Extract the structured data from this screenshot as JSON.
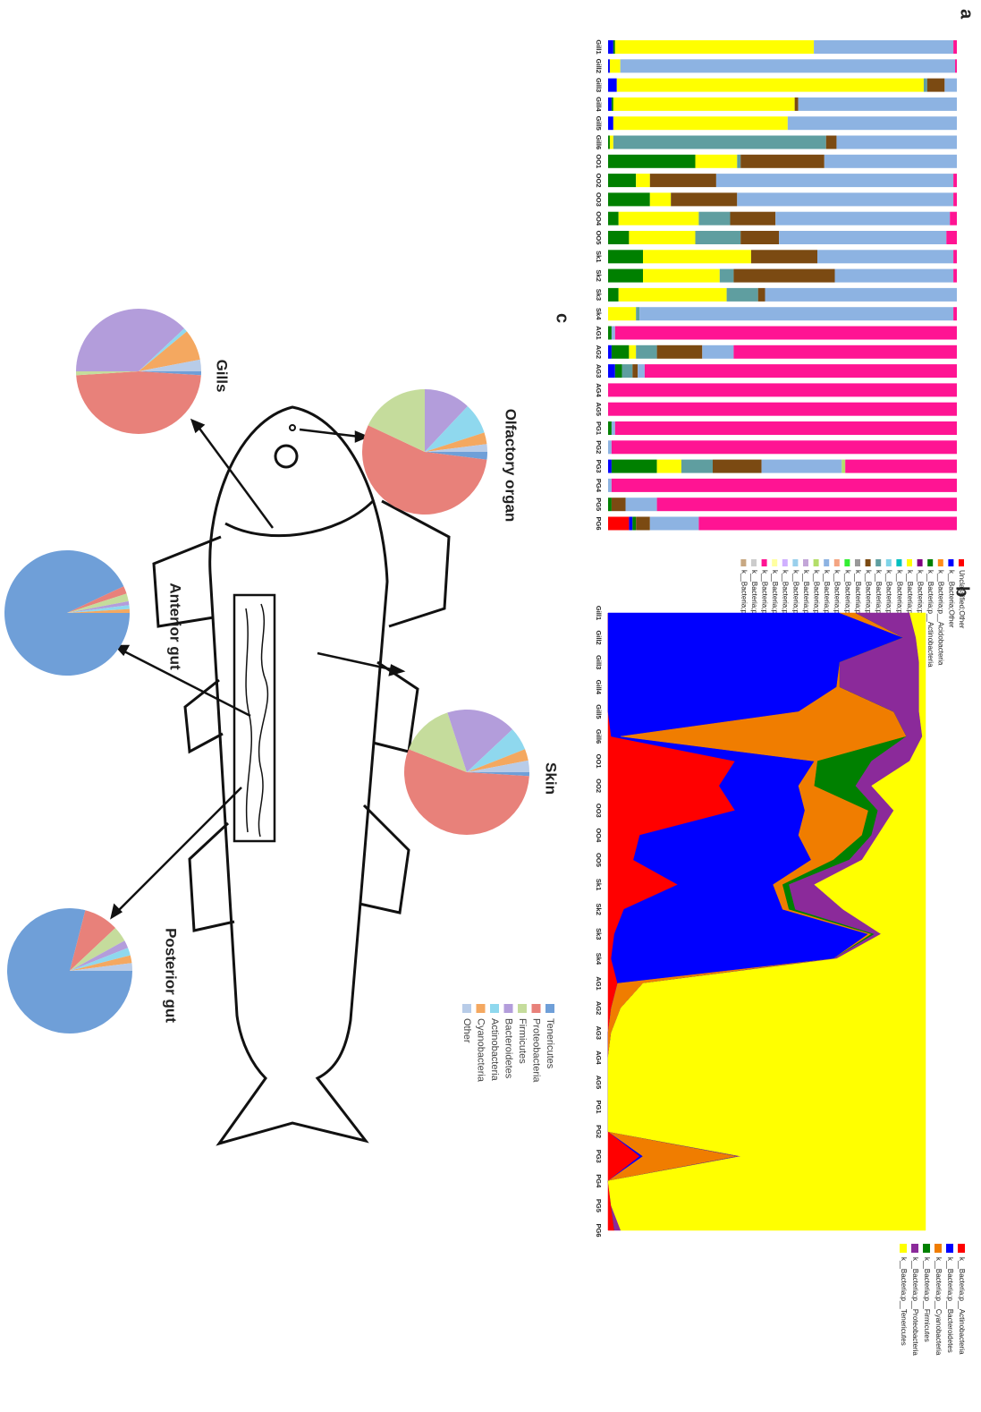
{
  "chart_data": [
    {
      "type": "bar",
      "label": "a",
      "stacked": true,
      "ylim": [
        0,
        100
      ],
      "categories": [
        "Gill1",
        "Gill2",
        "Gill3",
        "Gill4",
        "Gill5",
        "Gill6",
        "OO1",
        "OO2",
        "OO3",
        "OO4",
        "OO5",
        "Sk1",
        "Sk2",
        "Sk3",
        "Sk4",
        "AG1",
        "AG2",
        "AG3",
        "AG4",
        "AG5",
        "PG1",
        "PG2",
        "PG3",
        "PG4",
        "PG5",
        "PG6"
      ],
      "series": [
        {
          "name": "Unclassified;Other",
          "color": "#ff0000",
          "values": [
            0,
            0,
            0,
            0,
            0,
            0,
            0,
            0,
            0,
            0,
            0,
            0,
            0,
            0,
            0,
            0,
            0,
            0,
            0,
            0,
            0,
            0,
            0,
            0,
            0,
            6
          ]
        },
        {
          "name": "k__Bacteria;Other",
          "color": "#0000ff",
          "values": [
            1.5,
            0.5,
            2.5,
            1,
            1.5,
            0,
            0,
            0,
            0,
            0,
            0,
            0,
            0,
            0,
            0,
            0,
            1,
            2,
            0,
            0,
            0,
            0,
            1,
            0,
            0,
            1
          ]
        },
        {
          "name": "k__Bacteria;p__Acidobacteria",
          "color": "#ff8c1a",
          "values": [
            0,
            0,
            0,
            0,
            0,
            0,
            0,
            0,
            0,
            0,
            0,
            0,
            0,
            0,
            0,
            0,
            0,
            0,
            0,
            0,
            0,
            0,
            0,
            0,
            0,
            0
          ]
        },
        {
          "name": "k__Bacteria;p__Actinobacteria",
          "color": "#008000",
          "values": [
            0.5,
            0,
            0,
            0.5,
            0,
            0.5,
            25,
            8,
            12,
            3,
            6,
            10,
            10,
            3,
            0,
            1,
            5,
            2,
            0,
            0,
            1,
            0,
            13,
            0,
            1,
            1
          ]
        },
        {
          "name": "k__Bacteria;p__Armatimonadetes",
          "color": "#800080",
          "values": [
            0,
            0,
            0,
            0,
            0,
            0,
            0,
            0,
            0,
            0,
            0,
            0,
            0,
            0,
            0,
            0,
            0,
            0,
            0,
            0,
            0,
            0,
            0,
            0,
            0,
            0
          ]
        },
        {
          "name": "k__Bacteria;p__Bacteroidetes",
          "color": "#ffff00",
          "values": [
            57,
            3,
            88,
            52,
            50,
            1,
            12,
            4,
            6,
            23,
            19,
            31,
            22,
            31,
            8,
            0,
            2,
            0,
            0,
            0,
            0,
            0,
            7,
            0,
            0,
            0
          ]
        },
        {
          "name": "k__Bacteria;p__Chlorobi",
          "color": "#00bfbf",
          "values": [
            0,
            0,
            0,
            0,
            0,
            0,
            0,
            0,
            0,
            0,
            0,
            0,
            0,
            0,
            0,
            0,
            0,
            0,
            0,
            0,
            0,
            0,
            0,
            0,
            0,
            0
          ]
        },
        {
          "name": "k__Bacteria;p__Chloroflexi",
          "color": "#7fd4e8",
          "values": [
            0,
            0,
            0,
            0,
            0,
            0,
            0,
            0,
            0,
            0,
            0,
            0,
            0,
            0,
            0,
            0,
            0,
            0,
            0,
            0,
            0,
            0,
            0,
            0,
            0,
            0
          ]
        },
        {
          "name": "k__Bacteria;p__Cyanobacteria",
          "color": "#5f9ea0",
          "values": [
            0,
            0,
            1,
            0,
            0,
            61,
            1,
            0,
            0,
            9,
            13,
            0,
            4,
            9,
            1,
            0,
            6,
            3,
            0,
            0,
            0,
            0,
            9,
            0,
            0,
            0
          ]
        },
        {
          "name": "k__Bacteria;p__Firmicutes",
          "color": "#7b4a12",
          "values": [
            0,
            0,
            5,
            1,
            0,
            3,
            24,
            19,
            19,
            13,
            11,
            19,
            29,
            2,
            0,
            0,
            13,
            1.5,
            0,
            0,
            0,
            0,
            14,
            0,
            4,
            4
          ]
        },
        {
          "name": "k__Bacteria;p__Fusobacteria",
          "color": "#999999",
          "values": [
            0,
            0,
            0,
            0,
            0,
            0,
            0,
            0,
            0,
            0,
            0,
            0,
            0,
            0,
            0,
            0,
            0,
            0,
            0,
            0,
            0,
            0,
            0,
            0,
            0,
            0
          ]
        },
        {
          "name": "k__Bacteria;p__Gemmatimonadetes",
          "color": "#33ee33",
          "values": [
            0,
            0,
            0,
            0,
            0,
            0,
            0,
            0,
            0,
            0,
            0,
            0,
            0,
            0,
            0,
            0,
            0,
            0,
            0,
            0,
            0,
            0,
            0,
            0,
            0,
            0
          ]
        },
        {
          "name": "k__Bacteria;p__Planctomycetes",
          "color": "#f4a582",
          "values": [
            0,
            0,
            0,
            0,
            0,
            0,
            0,
            0,
            0,
            0,
            0,
            0,
            0,
            0,
            0,
            0,
            0,
            0,
            0,
            0,
            0,
            0,
            0,
            0,
            0,
            0
          ]
        },
        {
          "name": "k__Bacteria;p__Proteobacteria",
          "color": "#8db3e2",
          "values": [
            40,
            96,
            3.5,
            45.5,
            48.5,
            34.5,
            38,
            68,
            62,
            50,
            48,
            39,
            34,
            55,
            90,
            1,
            9,
            2,
            0,
            0,
            1,
            1,
            23,
            1,
            9,
            14
          ]
        },
        {
          "name": "k__Bacteria;p__SR1",
          "color": "#b3de69",
          "values": [
            0,
            0,
            0,
            0,
            0,
            0,
            0,
            0,
            0,
            0,
            0,
            0,
            0,
            0,
            0,
            0,
            0,
            0,
            0,
            0,
            0,
            0,
            1,
            0,
            0,
            0
          ]
        },
        {
          "name": "k__Bacteria;p__Spirochaetes",
          "color": "#c3a6d8",
          "values": [
            0,
            0,
            0,
            0,
            0,
            0,
            0,
            0,
            0,
            0,
            0,
            0,
            0,
            0,
            0,
            0,
            0,
            0,
            0,
            0,
            0,
            0,
            0,
            0,
            0,
            0
          ]
        },
        {
          "name": "k__Bacteria;p__Synergistetes",
          "color": "#9ad0ec",
          "values": [
            0,
            0,
            0,
            0,
            0,
            0,
            0,
            0,
            0,
            0,
            0,
            0,
            0,
            0,
            0,
            0,
            0,
            0,
            0,
            0,
            0,
            0,
            0,
            0,
            0,
            0
          ]
        },
        {
          "name": "k__Bacteria;p__TM6",
          "color": "#d0b0ff",
          "values": [
            0,
            0,
            0,
            0,
            0,
            0,
            0,
            0,
            0,
            0,
            0,
            0,
            0,
            0,
            0,
            0,
            0,
            0,
            0,
            0,
            0,
            0,
            0,
            0,
            0,
            0
          ]
        },
        {
          "name": "k__Bacteria;p__TM7",
          "color": "#ffffa0",
          "values": [
            0,
            0,
            0,
            0,
            0,
            0,
            0,
            0,
            0,
            0,
            0,
            0,
            0,
            0,
            0,
            0,
            0,
            0,
            0,
            0,
            0,
            0,
            0,
            0,
            0,
            0
          ]
        },
        {
          "name": "k__Bacteria;p__Tenericutes",
          "color": "#ff1493",
          "values": [
            1,
            0.5,
            0,
            0,
            0,
            0,
            0,
            1,
            1,
            2,
            3,
            1,
            1,
            0,
            1,
            98,
            64,
            89.5,
            100,
            100,
            98,
            99,
            32,
            99,
            86,
            74
          ]
        },
        {
          "name": "k__Bacteria;p__Thermi",
          "color": "#cccccc",
          "values": [
            0,
            0,
            0,
            0,
            0,
            0,
            0,
            0,
            0,
            0,
            0,
            0,
            0,
            0,
            0,
            0,
            0,
            0,
            0,
            0,
            0,
            0,
            0,
            0,
            0,
            0
          ]
        },
        {
          "name": "k__Bacteria;p__Verrucomicrobia",
          "color": "#c8a882",
          "values": [
            0,
            0,
            0,
            0,
            0,
            0,
            0,
            0,
            0,
            0,
            0,
            0,
            0,
            0,
            0,
            0,
            0,
            0,
            0,
            0,
            0,
            0,
            0,
            0,
            0,
            0
          ]
        }
      ]
    },
    {
      "type": "area",
      "label": "b",
      "stacked": true,
      "ylim": [
        0,
        100
      ],
      "categories": [
        "Gill1",
        "Gill2",
        "Gill3",
        "Gill4",
        "Gill5",
        "Gill6",
        "OO1",
        "OO2",
        "OO3",
        "OO4",
        "OO5",
        "Sk1",
        "Sk2",
        "Sk3",
        "Sk4",
        "AG1",
        "AG2",
        "AG3",
        "AG4",
        "AG5",
        "PG1",
        "PG2",
        "PG3",
        "PG4",
        "PG5",
        "PG6"
      ],
      "series": [
        {
          "name": "k__Bacteria;p__Actinobacteria",
          "color": "#ff0000",
          "values": [
            0,
            0,
            0,
            0,
            0,
            1,
            40,
            35,
            40,
            10,
            8,
            22,
            5,
            2,
            1,
            3,
            1,
            0,
            0,
            0,
            0,
            0,
            10,
            0,
            1,
            2
          ]
        },
        {
          "name": "k__Bacteria;p__Bacteroidetes",
          "color": "#0000ff",
          "values": [
            73,
            93,
            73,
            72,
            60,
            3,
            25,
            25,
            22,
            50,
            56,
            30,
            50,
            80,
            70,
            0,
            0,
            0,
            0,
            0,
            0,
            0,
            1,
            0,
            0,
            0
          ]
        },
        {
          "name": "k__Bacteria;p__Cyanobacteria",
          "color": "#f07d00",
          "values": [
            5,
            0,
            0,
            1,
            30,
            90,
            1,
            5,
            20,
            20,
            7,
            3,
            2,
            1,
            0,
            8,
            3,
            1,
            0,
            0,
            0,
            0,
            30,
            0,
            0,
            0
          ]
        },
        {
          "name": "k__Bacteria;p__Firmicutes",
          "color": "#008000",
          "values": [
            0,
            0,
            0,
            0,
            0,
            0,
            17,
            13,
            3,
            3,
            5,
            2,
            2,
            1,
            0,
            0,
            0,
            0,
            0,
            0,
            0,
            0,
            0,
            0,
            0,
            0
          ]
        },
        {
          "name": "k__Bacteria;p__Proteobacteria",
          "color": "#8b2a9a",
          "values": [
            17,
            4,
            25,
            25,
            8,
            5,
            12,
            5,
            5,
            2,
            4,
            8,
            15,
            2,
            1,
            0,
            0,
            0,
            0,
            0,
            0,
            0,
            1,
            0,
            0,
            2
          ]
        },
        {
          "name": "k__Bacteria;p__Tenericutes",
          "color": "#ffff00",
          "values": [
            5,
            3,
            2,
            2,
            2,
            1,
            5,
            17,
            10,
            15,
            20,
            35,
            26,
            14,
            28,
            89,
            96,
            99,
            100,
            100,
            100,
            100,
            58,
            100,
            99,
            96
          ]
        }
      ]
    },
    {
      "type": "pie",
      "label": "c",
      "categories": [
        "Tenericutes",
        "Proteobacteria",
        "Firmicutes",
        "Bacteroidetes",
        "Actinobacteria",
        "Cyanobacteria",
        "Other"
      ],
      "colors": [
        "#6f9fd8",
        "#e8817a",
        "#c5dc9c",
        "#b39ddb",
        "#8fd8ee",
        "#f4a860",
        "#b8cce8"
      ],
      "pies": [
        {
          "title": "Olfactory organ",
          "values": [
            2,
            55,
            18,
            12,
            8,
            3,
            2
          ]
        },
        {
          "title": "Gills",
          "values": [
            1,
            48,
            1,
            38,
            1,
            8,
            3
          ]
        },
        {
          "title": "Skin",
          "values": [
            1,
            55,
            14,
            18,
            6,
            3,
            3
          ]
        },
        {
          "title": "Anterior gut",
          "values": [
            93,
            2,
            2,
            1,
            1,
            1,
            0
          ]
        },
        {
          "title": "Posterior gut",
          "values": [
            79,
            9,
            4,
            2,
            2,
            2,
            2
          ]
        }
      ]
    }
  ]
}
